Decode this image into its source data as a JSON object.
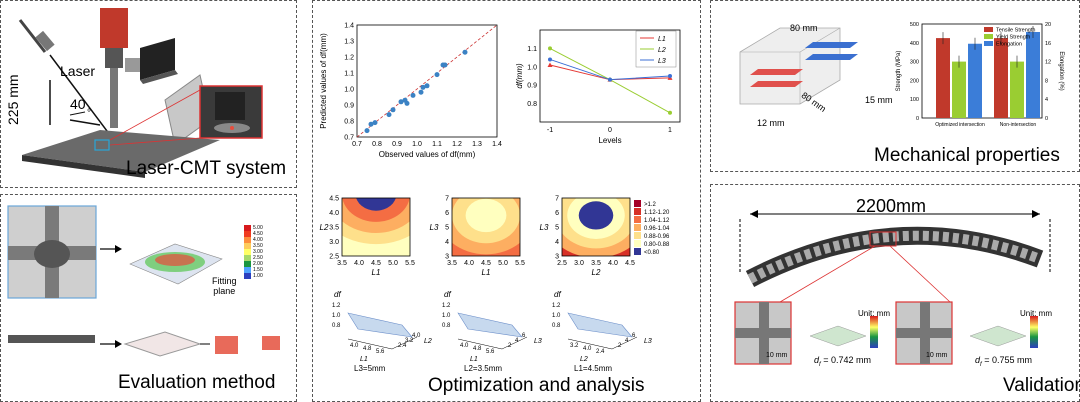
{
  "panels": {
    "laser_cmt": {
      "title": "Laser-CMT system",
      "label_laser": "Laser",
      "label_distance": "225 mm",
      "label_angle": "40",
      "label_angle_unit": "°"
    },
    "evaluation": {
      "title": "Evaluation method",
      "fitting_plane": "Fitting\nplane",
      "colorbar": [
        "5.00",
        "4.50",
        "4.00",
        "3.50",
        "3.00",
        "2.50",
        "2.00",
        "1.50",
        "1.00"
      ],
      "colorbar_colors": [
        "#d7191c",
        "#f03b20",
        "#fd8d3c",
        "#fecc5c",
        "#ffff66",
        "#a6d96a",
        "#1a9641",
        "#4fa3ff",
        "#2c3fbf"
      ]
    },
    "optimization": {
      "title": "Optimization and analysis",
      "legend_ranges": [
        ">1.2",
        "1.12-1.20",
        "1.04-1.12",
        "0.96-1.04",
        "0.88-0.96",
        "0.80-0.88",
        "<0.80"
      ],
      "legend_colors": [
        "#a50026",
        "#d73027",
        "#f46d43",
        "#fdae61",
        "#fee08b",
        "#ffffbf",
        "#313695"
      ],
      "contour_labels": {
        "c1": {
          "x": "L1",
          "y": "L2",
          "xticks": [
            "3.5",
            "4.0",
            "4.5",
            "5.0",
            "5.5"
          ],
          "yticks": [
            "2.5",
            "3.0",
            "3.5",
            "4.0",
            "4.5"
          ]
        },
        "c2": {
          "x": "L1",
          "y": "L3",
          "xticks": [
            "3.5",
            "4.0",
            "4.5",
            "5.0",
            "5.5"
          ],
          "yticks": [
            "3",
            "4",
            "5",
            "6",
            "7"
          ]
        },
        "c3": {
          "x": "L2",
          "y": "L3",
          "xticks": [
            "2.5",
            "3.0",
            "3.5",
            "4.0",
            "4.5"
          ],
          "yticks": [
            "3",
            "4",
            "5",
            "6",
            "7"
          ]
        }
      },
      "surface_labels": [
        {
          "z": "df",
          "zt": [
            "1.2",
            "1.0",
            "0.8"
          ],
          "caption": "L3=5mm",
          "a1": "L1",
          "a2": "L2",
          "t1": [
            "4.0",
            "4.8",
            "5.6"
          ],
          "t2": [
            "2.4",
            "3.2",
            "4.0"
          ]
        },
        {
          "z": "df",
          "zt": [
            "1.2",
            "1.0",
            "0.8"
          ],
          "caption": "L2=3.5mm",
          "a1": "L1",
          "a2": "L3",
          "t1": [
            "4.0",
            "4.8",
            "5.6"
          ],
          "t2": [
            "2",
            "4",
            "6"
          ]
        },
        {
          "z": "df",
          "zt": [
            "1.2",
            "1.0",
            "0.8"
          ],
          "caption": "L1=4.5mm",
          "a1": "L2",
          "a2": "L3",
          "t1": [
            "3.2",
            "4.0",
            "2.4"
          ],
          "t2": [
            "2",
            "4",
            "6"
          ]
        }
      ]
    },
    "mechanical": {
      "title": "Mechanical properties",
      "dim_80_top": "80 mm",
      "dim_80_bottom": "80 mm",
      "dim_15": "15 mm",
      "dim_12": "12 mm"
    },
    "validation": {
      "title": "Validation",
      "length": "2200mm",
      "unit1": "Unit: mm",
      "unit2": "Unit: mm",
      "scale1": "10 mm",
      "scale2": "10 mm",
      "df1": "= 0.742 mm",
      "df2": "= 0.755 mm",
      "df_symbol": "d",
      "df_sub": "f"
    }
  },
  "chart_data": [
    {
      "type": "scatter",
      "xlabel": "Observed values of df(mm)",
      "ylabel": "Predicted values of df(mm)",
      "xlim": [
        0.7,
        1.4
      ],
      "ylim": [
        0.7,
        1.4
      ],
      "xticks": [
        "0.7",
        "0.8",
        "0.9",
        "1.0",
        "1.1",
        "1.2",
        "1.3",
        "1.4"
      ],
      "yticks": [
        "0.7",
        "0.8",
        "0.9",
        "1.0",
        "1.1",
        "1.2",
        "1.3",
        "1.4"
      ],
      "points": [
        [
          0.75,
          0.74
        ],
        [
          0.77,
          0.78
        ],
        [
          0.79,
          0.79
        ],
        [
          0.86,
          0.84
        ],
        [
          0.88,
          0.87
        ],
        [
          0.92,
          0.92
        ],
        [
          0.94,
          0.93
        ],
        [
          0.95,
          0.91
        ],
        [
          0.98,
          0.96
        ],
        [
          1.02,
          0.98
        ],
        [
          1.03,
          1.01
        ],
        [
          1.05,
          1.02
        ],
        [
          1.1,
          1.09
        ],
        [
          1.13,
          1.15
        ],
        [
          1.14,
          1.15
        ],
        [
          1.24,
          1.23
        ]
      ],
      "diagonal": true
    },
    {
      "type": "line",
      "xlabel": "Levels",
      "ylabel": "df(mm)",
      "x": [
        -1,
        0,
        1
      ],
      "xticks": [
        "-1",
        "0",
        "1"
      ],
      "ylim": [
        0.7,
        1.2
      ],
      "yticks": [
        "0.8",
        "0.9",
        "1.0",
        "1.1"
      ],
      "series": [
        {
          "name": "L1",
          "color": "#e53935",
          "marker": "triangle",
          "values": [
            1.01,
            0.93,
            0.94
          ]
        },
        {
          "name": "L2",
          "color": "#9acd32",
          "marker": "circle",
          "values": [
            1.1,
            0.93,
            0.75
          ]
        },
        {
          "name": "L3",
          "color": "#3b6fd6",
          "marker": "circle",
          "values": [
            1.04,
            0.93,
            0.95
          ]
        }
      ]
    },
    {
      "type": "bar",
      "categories": [
        "Optimized intersection",
        "Non-intersection"
      ],
      "ylabel": "Strength (MPa)",
      "y2label": "Elongation (%)",
      "ylim": [
        0,
        500
      ],
      "yticks": [
        "0",
        "100",
        "200",
        "300",
        "400",
        "500"
      ],
      "y2lim": [
        0,
        20
      ],
      "y2ticks": [
        "0",
        "4",
        "8",
        "12",
        "16",
        "20"
      ],
      "series": [
        {
          "name": "Tensile Strength",
          "color": "#c0392b",
          "values": [
            425,
            425
          ]
        },
        {
          "name": "Yield Strength",
          "color": "#9acd32",
          "values": [
            300,
            300
          ]
        },
        {
          "name": "Elongation",
          "color": "#3b7dd8",
          "axis": "y2",
          "values": [
            15.8,
            18.3
          ]
        }
      ]
    }
  ]
}
